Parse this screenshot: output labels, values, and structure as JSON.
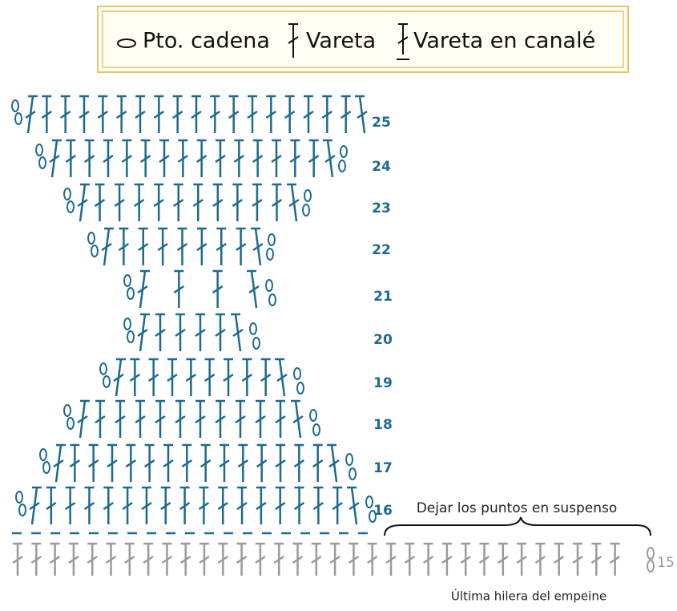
{
  "legend": {
    "items": [
      "Pto. cadena",
      "Vareta",
      "Vareta en canalé"
    ]
  },
  "rows": [
    "25",
    "24",
    "23",
    "22",
    "21",
    "20",
    "19",
    "18",
    "17",
    "16",
    "15"
  ],
  "annotations": {
    "hold": "Dejar los puntos en suspenso",
    "last_row": "Última hilera del empeine"
  }
}
